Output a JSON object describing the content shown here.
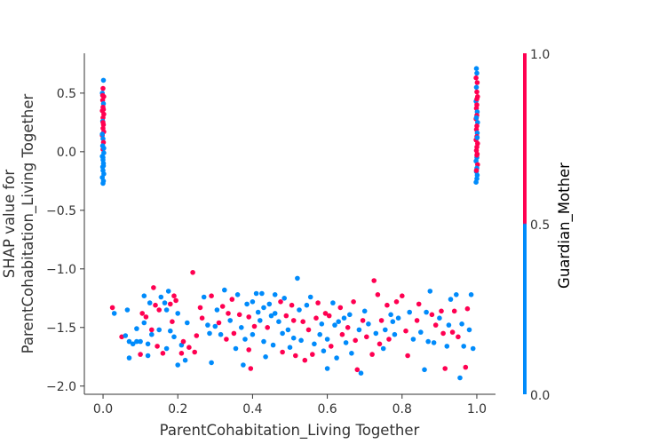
{
  "chart_data": {
    "type": "scatter",
    "title": "",
    "xlabel": "ParentCohabitation_Living Together",
    "ylabel_lines": [
      "SHAP value for",
      "ParentCohabitation_Living Together"
    ],
    "xlim": [
      -0.05,
      1.05
    ],
    "ylim": [
      -2.07,
      0.84
    ],
    "xticks": [
      0.0,
      0.2,
      0.4,
      0.6,
      0.8,
      1.0
    ],
    "xtick_labels": [
      "0.0",
      "0.2",
      "0.4",
      "0.6",
      "0.8",
      "1.0"
    ],
    "yticks": [
      0.5,
      0.0,
      -0.5,
      -1.0,
      -1.5,
      -2.0
    ],
    "ytick_labels": [
      "0.5",
      "0.0",
      "−0.5",
      "−1.0",
      "−1.5",
      "−2.0"
    ],
    "colorbar": {
      "label": "Guardian_Mother",
      "ticks": [
        "1.0",
        "0.5",
        "0.0"
      ],
      "low_color": "#008bfb",
      "high_color": "#ff0051"
    },
    "colors": {
      "low": "#008bfb",
      "high": "#ff0051"
    },
    "grid": false,
    "legend": "none",
    "points": [
      [
        0.001,
        0.61,
        0
      ],
      [
        0.0,
        0.54,
        1
      ],
      [
        -0.002,
        0.5,
        0
      ],
      [
        0.002,
        0.47,
        1
      ],
      [
        -0.001,
        0.44,
        1
      ],
      [
        0.001,
        0.41,
        0
      ],
      [
        0.0,
        0.38,
        1
      ],
      [
        -0.002,
        0.35,
        1
      ],
      [
        0.002,
        0.32,
        1
      ],
      [
        0.0,
        0.29,
        1
      ],
      [
        -0.001,
        0.26,
        0
      ],
      [
        0.001,
        0.23,
        1
      ],
      [
        0.0,
        0.2,
        1
      ],
      [
        0.002,
        0.17,
        1
      ],
      [
        -0.002,
        0.14,
        1
      ],
      [
        0.0,
        0.11,
        0
      ],
      [
        0.001,
        0.08,
        1
      ],
      [
        -0.001,
        0.05,
        0
      ],
      [
        0.0,
        0.02,
        1
      ],
      [
        0.002,
        -0.01,
        0
      ],
      [
        -0.002,
        -0.04,
        0
      ],
      [
        0.0,
        -0.07,
        0
      ],
      [
        0.001,
        -0.1,
        0
      ],
      [
        -0.001,
        -0.13,
        0
      ],
      [
        0.0,
        -0.16,
        0
      ],
      [
        0.002,
        -0.19,
        0
      ],
      [
        -0.002,
        -0.22,
        0
      ],
      [
        0.001,
        -0.25,
        0
      ],
      [
        0.0,
        -0.27,
        0
      ],
      [
        -0.001,
        0.48,
        1
      ],
      [
        0.001,
        0.36,
        1
      ],
      [
        0.0,
        0.25,
        1
      ],
      [
        -0.002,
        0.15,
        0
      ],
      [
        0.002,
        0.03,
        0
      ],
      [
        0.0,
        -0.05,
        0
      ],
      [
        0.001,
        -0.12,
        0
      ],
      [
        0.999,
        0.71,
        0
      ],
      [
        1.0,
        0.67,
        0
      ],
      [
        0.998,
        0.63,
        1
      ],
      [
        1.001,
        0.59,
        1
      ],
      [
        0.999,
        0.55,
        0
      ],
      [
        1.0,
        0.51,
        1
      ],
      [
        1.002,
        0.47,
        1
      ],
      [
        0.998,
        0.43,
        0
      ],
      [
        1.0,
        0.4,
        1
      ],
      [
        0.999,
        0.37,
        1
      ],
      [
        1.001,
        0.34,
        0
      ],
      [
        1.0,
        0.31,
        1
      ],
      [
        0.998,
        0.28,
        1
      ],
      [
        1.002,
        0.25,
        0
      ],
      [
        1.0,
        0.22,
        1
      ],
      [
        0.999,
        0.19,
        1
      ],
      [
        1.001,
        0.16,
        0
      ],
      [
        1.0,
        0.13,
        1
      ],
      [
        0.998,
        0.1,
        1
      ],
      [
        1.002,
        0.07,
        1
      ],
      [
        1.0,
        0.04,
        1
      ],
      [
        0.999,
        0.01,
        1
      ],
      [
        1.001,
        -0.02,
        1
      ],
      [
        1.0,
        -0.05,
        0
      ],
      [
        0.998,
        -0.08,
        0
      ],
      [
        1.002,
        -0.11,
        1
      ],
      [
        1.0,
        -0.14,
        0
      ],
      [
        0.999,
        -0.17,
        0
      ],
      [
        1.001,
        -0.2,
        0
      ],
      [
        1.0,
        -0.23,
        0
      ],
      [
        0.998,
        -0.26,
        0
      ],
      [
        1.0,
        0.45,
        1
      ],
      [
        0.999,
        0.29,
        0
      ],
      [
        1.001,
        0.12,
        0
      ],
      [
        1.0,
        -0.03,
        1
      ],
      [
        0.999,
        -0.16,
        1
      ],
      [
        0.025,
        -1.33,
        1
      ],
      [
        0.03,
        -1.38,
        0
      ],
      [
        0.05,
        -1.58,
        1
      ],
      [
        0.06,
        -1.57,
        0
      ],
      [
        0.065,
        -1.35,
        0
      ],
      [
        0.07,
        -1.62,
        0
      ],
      [
        0.07,
        -1.76,
        0
      ],
      [
        0.08,
        -1.64,
        0
      ],
      [
        0.09,
        -1.62,
        0
      ],
      [
        0.09,
        -1.51,
        0
      ],
      [
        0.1,
        -1.62,
        0
      ],
      [
        0.1,
        -1.73,
        1
      ],
      [
        0.105,
        -1.38,
        1
      ],
      [
        0.11,
        -1.23,
        0
      ],
      [
        0.11,
        -1.46,
        0
      ],
      [
        0.115,
        -1.41,
        1
      ],
      [
        0.12,
        -1.64,
        0
      ],
      [
        0.12,
        -1.74,
        0
      ],
      [
        0.125,
        -1.29,
        0
      ],
      [
        0.13,
        -1.52,
        1
      ],
      [
        0.13,
        -1.56,
        0
      ],
      [
        0.135,
        -1.16,
        1
      ],
      [
        0.14,
        -1.31,
        1
      ],
      [
        0.145,
        -1.66,
        1
      ],
      [
        0.15,
        -1.35,
        1
      ],
      [
        0.15,
        -1.52,
        0
      ],
      [
        0.155,
        -1.24,
        0
      ],
      [
        0.16,
        -1.72,
        1
      ],
      [
        0.165,
        -1.29,
        0
      ],
      [
        0.17,
        -1.35,
        0
      ],
      [
        0.17,
        -1.68,
        0
      ],
      [
        0.175,
        -1.19,
        0
      ],
      [
        0.18,
        -1.3,
        1
      ],
      [
        0.18,
        -1.53,
        0
      ],
      [
        0.185,
        -1.45,
        1
      ],
      [
        0.19,
        -1.23,
        1
      ],
      [
        0.19,
        -1.58,
        0
      ],
      [
        0.195,
        -1.27,
        1
      ],
      [
        0.2,
        -1.38,
        0
      ],
      [
        0.2,
        -1.82,
        0
      ],
      [
        0.21,
        -1.65,
        0
      ],
      [
        0.21,
        -1.72,
        1
      ],
      [
        0.215,
        -1.62,
        1
      ],
      [
        0.22,
        -1.78,
        0
      ],
      [
        0.225,
        -1.46,
        0
      ],
      [
        0.23,
        -1.67,
        1
      ],
      [
        0.24,
        -1.03,
        1
      ],
      [
        0.245,
        -1.71,
        1
      ],
      [
        0.25,
        -1.57,
        1
      ],
      [
        0.26,
        -1.33,
        1
      ],
      [
        0.265,
        -1.42,
        1
      ],
      [
        0.27,
        -1.24,
        0
      ],
      [
        0.28,
        -1.48,
        0
      ],
      [
        0.285,
        -1.55,
        0
      ],
      [
        0.29,
        -1.8,
        0
      ],
      [
        0.29,
        -1.23,
        1
      ],
      [
        0.3,
        -1.49,
        0
      ],
      [
        0.305,
        -1.35,
        0
      ],
      [
        0.31,
        -1.46,
        1
      ],
      [
        0.315,
        -1.56,
        0
      ],
      [
        0.32,
        -1.32,
        1
      ],
      [
        0.325,
        -1.18,
        0
      ],
      [
        0.33,
        -1.6,
        1
      ],
      [
        0.335,
        -1.38,
        1
      ],
      [
        0.34,
        -1.44,
        0
      ],
      [
        0.345,
        -1.26,
        1
      ],
      [
        0.35,
        -1.55,
        1
      ],
      [
        0.355,
        -1.68,
        0
      ],
      [
        0.36,
        -1.22,
        0
      ],
      [
        0.365,
        -1.39,
        1
      ],
      [
        0.37,
        -1.5,
        0
      ],
      [
        0.375,
        -1.82,
        0
      ],
      [
        0.38,
        -1.6,
        0
      ],
      [
        0.385,
        -1.3,
        0
      ],
      [
        0.39,
        -1.69,
        1
      ],
      [
        0.39,
        -1.41,
        1
      ],
      [
        0.395,
        -1.85,
        1
      ],
      [
        0.4,
        -1.28,
        0
      ],
      [
        0.4,
        -1.56,
        0
      ],
      [
        0.405,
        -1.49,
        1
      ],
      [
        0.41,
        -1.21,
        0
      ],
      [
        0.415,
        -1.37,
        0
      ],
      [
        0.42,
        -1.44,
        0
      ],
      [
        0.425,
        -1.21,
        0
      ],
      [
        0.43,
        -1.62,
        0
      ],
      [
        0.43,
        -1.33,
        0
      ],
      [
        0.435,
        -1.75,
        0
      ],
      [
        0.44,
        -1.5,
        1
      ],
      [
        0.445,
        -1.3,
        0
      ],
      [
        0.45,
        -1.4,
        0
      ],
      [
        0.455,
        -1.65,
        0
      ],
      [
        0.46,
        -1.38,
        0
      ],
      [
        0.46,
        -1.22,
        0
      ],
      [
        0.47,
        -1.45,
        0
      ],
      [
        0.475,
        -1.28,
        1
      ],
      [
        0.48,
        -1.71,
        1
      ],
      [
        0.48,
        -1.55,
        0
      ],
      [
        0.485,
        -1.25,
        0
      ],
      [
        0.49,
        -1.4,
        1
      ],
      [
        0.495,
        -1.52,
        0
      ],
      [
        0.5,
        -1.67,
        0
      ],
      [
        0.505,
        -1.31,
        1
      ],
      [
        0.51,
        -1.59,
        0
      ],
      [
        0.51,
        -1.44,
        1
      ],
      [
        0.515,
        -1.74,
        1
      ],
      [
        0.52,
        -1.08,
        0
      ],
      [
        0.525,
        -1.35,
        0
      ],
      [
        0.53,
        -1.61,
        0
      ],
      [
        0.535,
        -1.45,
        1
      ],
      [
        0.54,
        -1.78,
        1
      ],
      [
        0.545,
        -1.31,
        0
      ],
      [
        0.55,
        -1.52,
        1
      ],
      [
        0.555,
        -1.24,
        0
      ],
      [
        0.56,
        -1.73,
        1
      ],
      [
        0.565,
        -1.64,
        0
      ],
      [
        0.57,
        -1.42,
        1
      ],
      [
        0.575,
        -1.29,
        1
      ],
      [
        0.58,
        -1.56,
        0
      ],
      [
        0.585,
        -1.47,
        0
      ],
      [
        0.59,
        -1.7,
        0
      ],
      [
        0.595,
        -1.38,
        1
      ],
      [
        0.6,
        -1.85,
        0
      ],
      [
        0.6,
        -1.6,
        0
      ],
      [
        0.605,
        -1.4,
        1
      ],
      [
        0.61,
        -1.66,
        1
      ],
      [
        0.615,
        -1.29,
        0
      ],
      [
        0.62,
        -1.48,
        0
      ],
      [
        0.625,
        -1.76,
        0
      ],
      [
        0.63,
        -1.45,
        0
      ],
      [
        0.635,
        -1.33,
        1
      ],
      [
        0.64,
        -1.56,
        1
      ],
      [
        0.645,
        -1.42,
        0
      ],
      [
        0.65,
        -1.63,
        0
      ],
      [
        0.655,
        -1.5,
        1
      ],
      [
        0.66,
        -1.39,
        0
      ],
      [
        0.665,
        -1.72,
        0
      ],
      [
        0.67,
        -1.28,
        1
      ],
      [
        0.675,
        -1.61,
        1
      ],
      [
        0.68,
        -1.86,
        1
      ],
      [
        0.685,
        -1.52,
        0
      ],
      [
        0.69,
        -1.89,
        0
      ],
      [
        0.695,
        -1.44,
        1
      ],
      [
        0.7,
        -1.36,
        0
      ],
      [
        0.705,
        -1.58,
        1
      ],
      [
        0.71,
        -1.47,
        0
      ],
      [
        0.72,
        -1.73,
        1
      ],
      [
        0.725,
        -1.1,
        1
      ],
      [
        0.73,
        -1.55,
        0
      ],
      [
        0.735,
        -1.22,
        1
      ],
      [
        0.74,
        -1.64,
        1
      ],
      [
        0.745,
        -1.44,
        1
      ],
      [
        0.75,
        -1.68,
        0
      ],
      [
        0.755,
        -1.52,
        0
      ],
      [
        0.76,
        -1.31,
        1
      ],
      [
        0.765,
        -1.6,
        1
      ],
      [
        0.77,
        -1.39,
        0
      ],
      [
        0.775,
        -1.45,
        0
      ],
      [
        0.78,
        -1.56,
        0
      ],
      [
        0.785,
        -1.28,
        1
      ],
      [
        0.79,
        -1.42,
        0
      ],
      [
        0.8,
        -1.23,
        1
      ],
      [
        0.81,
        -1.53,
        1
      ],
      [
        0.815,
        -1.74,
        1
      ],
      [
        0.82,
        -1.37,
        0
      ],
      [
        0.83,
        -1.6,
        0
      ],
      [
        0.84,
        -1.44,
        1
      ],
      [
        0.845,
        -1.3,
        1
      ],
      [
        0.85,
        -1.54,
        0
      ],
      [
        0.86,
        -1.86,
        0
      ],
      [
        0.865,
        -1.37,
        0
      ],
      [
        0.87,
        -1.62,
        0
      ],
      [
        0.875,
        -1.19,
        0
      ],
      [
        0.88,
        -1.39,
        1
      ],
      [
        0.885,
        -1.63,
        0
      ],
      [
        0.89,
        -1.48,
        1
      ],
      [
        0.9,
        -1.42,
        0
      ],
      [
        0.905,
        -1.36,
        1
      ],
      [
        0.91,
        -1.55,
        1
      ],
      [
        0.915,
        -1.85,
        1
      ],
      [
        0.92,
        -1.66,
        0
      ],
      [
        0.925,
        -1.48,
        0
      ],
      [
        0.93,
        -1.26,
        0
      ],
      [
        0.935,
        -1.54,
        1
      ],
      [
        0.94,
        -1.36,
        1
      ],
      [
        0.945,
        -1.22,
        0
      ],
      [
        0.95,
        -1.58,
        1
      ],
      [
        0.955,
        -1.93,
        0
      ],
      [
        0.96,
        -1.47,
        0
      ],
      [
        0.965,
        -1.66,
        0
      ],
      [
        0.97,
        -1.84,
        1
      ],
      [
        0.975,
        -1.34,
        1
      ],
      [
        0.98,
        -1.52,
        0
      ],
      [
        0.985,
        -1.22,
        0
      ],
      [
        0.99,
        -1.68,
        0
      ]
    ]
  }
}
